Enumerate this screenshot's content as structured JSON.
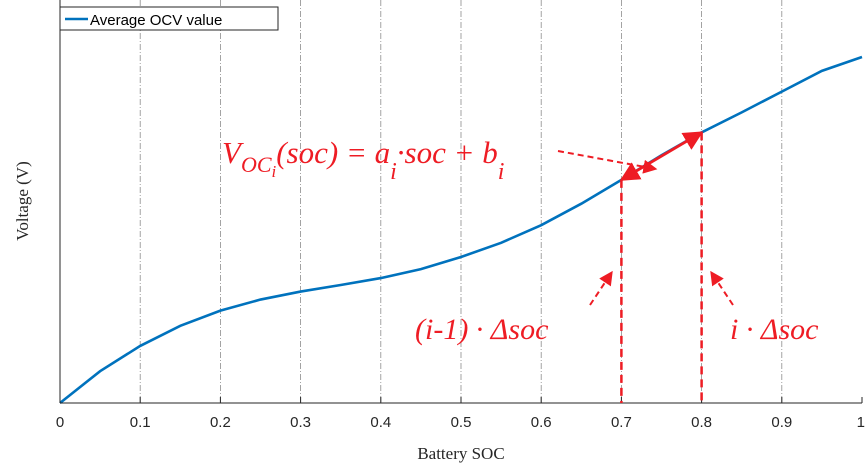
{
  "chart_data": {
    "type": "line",
    "title": "",
    "xlabel": "Battery SOC",
    "ylabel": "Voltage (V)",
    "xlim": [
      0,
      1
    ],
    "x_ticks": [
      "0",
      "0.1",
      "0.2",
      "0.3",
      "0.4",
      "0.5",
      "0.6",
      "0.7",
      "0.8",
      "0.9",
      "1"
    ],
    "y_ticks_labeled": false,
    "grid": "vertical-dashdot",
    "legend_position": "top-left",
    "series": [
      {
        "name": "Average OCV value",
        "color": "#0072bd",
        "x": [
          0,
          0.05,
          0.1,
          0.15,
          0.2,
          0.25,
          0.3,
          0.35,
          0.4,
          0.45,
          0.5,
          0.55,
          0.6,
          0.65,
          0.7,
          0.75,
          0.8,
          0.85,
          0.9,
          0.95,
          1
        ],
        "y": [
          0,
          0.092,
          0.165,
          0.223,
          0.267,
          0.299,
          0.322,
          0.341,
          0.361,
          0.387,
          0.422,
          0.463,
          0.514,
          0.576,
          0.645,
          0.716,
          0.782,
          0.84,
          0.9,
          0.96,
          1.0
        ]
      }
    ],
    "annotations": {
      "color": "#ee1c24",
      "equation": {
        "v": "V",
        "v_sub": "OC",
        "v_subsub": "i",
        "rest1": "(soc) = a",
        "a_sub": "i",
        "rest2": "·soc + b",
        "b_sub": "i"
      },
      "left_label": "(i-1) · Δsoc",
      "right_label": "i · Δsoc",
      "segment_x": [
        0.7,
        0.8
      ]
    }
  }
}
